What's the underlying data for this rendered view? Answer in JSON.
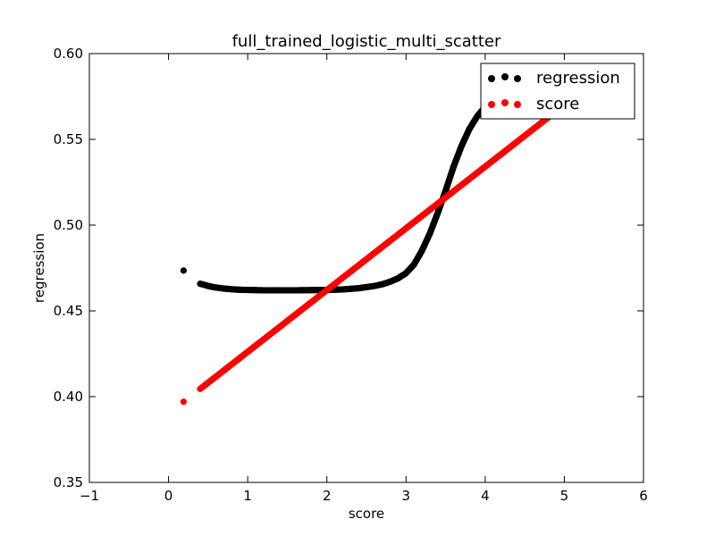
{
  "chart_data": {
    "type": "scatter",
    "title": "full_trained_logistic_multi_scatter",
    "xlabel": "score",
    "ylabel": "regression",
    "xlim": [
      -1,
      6
    ],
    "ylim": [
      0.35,
      0.6
    ],
    "xticks": [
      -1,
      0,
      1,
      2,
      3,
      4,
      5,
      6
    ],
    "xtick_labels": [
      "−1",
      "0",
      "1",
      "2",
      "3",
      "4",
      "5",
      "6"
    ],
    "yticks": [
      0.35,
      0.4,
      0.45,
      0.5,
      0.55,
      0.6
    ],
    "ytick_labels": [
      "0.35",
      "0.40",
      "0.45",
      "0.50",
      "0.55",
      "0.60"
    ],
    "grid": false,
    "legend_position": "top-right",
    "series": [
      {
        "name": "regression",
        "color": "#000000",
        "points": [
          [
            0.19,
            0.4735
          ],
          [
            0.4,
            0.4658
          ],
          [
            0.45,
            0.4652
          ],
          [
            0.5,
            0.4645
          ],
          [
            0.55,
            0.464
          ],
          [
            0.6,
            0.4636
          ],
          [
            0.7,
            0.463
          ],
          [
            0.8,
            0.4626
          ],
          [
            0.9,
            0.4623
          ],
          [
            1.0,
            0.4622
          ],
          [
            1.2,
            0.462
          ],
          [
            1.4,
            0.462
          ],
          [
            1.6,
            0.462
          ],
          [
            1.8,
            0.4621
          ],
          [
            2.0,
            0.4622
          ],
          [
            2.2,
            0.4625
          ],
          [
            2.4,
            0.4632
          ],
          [
            2.6,
            0.4645
          ],
          [
            2.7,
            0.4655
          ],
          [
            2.8,
            0.467
          ],
          [
            2.9,
            0.469
          ],
          [
            3.0,
            0.472
          ],
          [
            3.1,
            0.477
          ],
          [
            3.2,
            0.485
          ],
          [
            3.3,
            0.495
          ],
          [
            3.4,
            0.507
          ],
          [
            3.5,
            0.52
          ],
          [
            3.6,
            0.534
          ],
          [
            3.7,
            0.546
          ],
          [
            3.8,
            0.556
          ],
          [
            3.9,
            0.5635
          ],
          [
            4.0,
            0.569
          ],
          [
            4.1,
            0.573
          ],
          [
            4.2,
            0.576
          ],
          [
            4.3,
            0.578
          ],
          [
            4.4,
            0.5795
          ],
          [
            4.5,
            0.5805
          ]
        ]
      },
      {
        "name": "score",
        "color": "#ff0000",
        "points": [
          [
            0.19,
            0.397
          ],
          [
            0.4,
            0.4045
          ],
          [
            0.5,
            0.4081
          ],
          [
            0.7,
            0.4153
          ],
          [
            0.9,
            0.4225
          ],
          [
            1.1,
            0.4297
          ],
          [
            1.3,
            0.4369
          ],
          [
            1.5,
            0.4441
          ],
          [
            1.7,
            0.4513
          ],
          [
            1.9,
            0.4585
          ],
          [
            2.1,
            0.4657
          ],
          [
            2.3,
            0.4729
          ],
          [
            2.5,
            0.4801
          ],
          [
            2.7,
            0.4873
          ],
          [
            2.9,
            0.4945
          ],
          [
            3.1,
            0.5017
          ],
          [
            3.3,
            0.5089
          ],
          [
            3.5,
            0.5161
          ],
          [
            3.7,
            0.5233
          ],
          [
            3.9,
            0.5305
          ],
          [
            4.1,
            0.5377
          ],
          [
            4.3,
            0.5449
          ],
          [
            4.5,
            0.5521
          ],
          [
            4.7,
            0.5593
          ],
          [
            4.9,
            0.5665
          ],
          [
            5.0,
            0.5701
          ]
        ]
      }
    ]
  }
}
